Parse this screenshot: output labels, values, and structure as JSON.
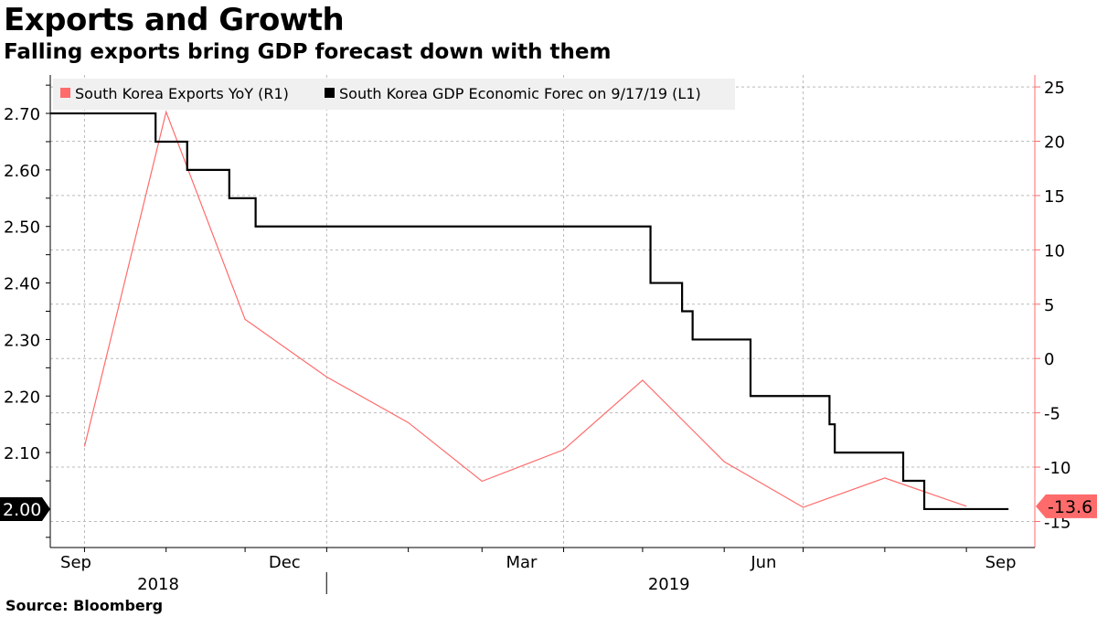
{
  "title": "Exports and Growth",
  "subtitle": "Falling exports bring GDP forecast down with them",
  "source": "Source: Bloomberg",
  "chart_data": {
    "type": "line",
    "legend_position": "top-left",
    "grid": true,
    "x_range": [
      "2018-09-17",
      "2019-09-26"
    ],
    "x_tick_labels": [
      {
        "label": "Sep",
        "date": "2018-09-15"
      },
      {
        "label": "Dec",
        "date": "2018-12-15"
      },
      {
        "label": "Mar",
        "date": "2019-03-15"
      },
      {
        "label": "Jun",
        "date": "2019-06-15"
      },
      {
        "label": "Sep",
        "date": "2019-09-13"
      }
    ],
    "year_labels": [
      {
        "label": "2018",
        "date": "2018-10-28"
      },
      {
        "label": "2019",
        "date": "2019-05-10"
      }
    ],
    "left_axis": {
      "ticks": [
        "2.70",
        "2.60",
        "2.50",
        "2.40",
        "2.30",
        "2.20",
        "2.10",
        "2.00"
      ],
      "range": [
        1.932,
        2.768
      ]
    },
    "right_axis": {
      "ticks": [
        "25",
        "20",
        "15",
        "10",
        "5",
        "0",
        "-5",
        "-10",
        "-15"
      ],
      "range": [
        -17.4,
        26.1
      ]
    },
    "series": [
      {
        "name": "South Korea Exports YoY  (R1)",
        "axis": "right",
        "color": "#ff6b6b",
        "last_value_label": "-13.6",
        "points": [
          [
            "2018-09-30",
            -8.1
          ],
          [
            "2018-10-31",
            22.7
          ],
          [
            "2018-11-30",
            3.6
          ],
          [
            "2018-12-31",
            -1.7
          ],
          [
            "2019-01-31",
            -5.9
          ],
          [
            "2019-02-28",
            -11.3
          ],
          [
            "2019-03-31",
            -8.4
          ],
          [
            "2019-04-30",
            -2.0
          ],
          [
            "2019-05-31",
            -9.5
          ],
          [
            "2019-06-30",
            -13.7
          ],
          [
            "2019-07-31",
            -11.0
          ],
          [
            "2019-08-31",
            -13.6
          ]
        ]
      },
      {
        "name": "South Korea GDP Economic Forec  on 9/17/19 (L1)",
        "axis": "left",
        "color": "#000000",
        "step": true,
        "last_value_label": "2.00",
        "points": [
          [
            "2018-09-17",
            2.7
          ],
          [
            "2018-10-27",
            2.65
          ],
          [
            "2018-11-08",
            2.6
          ],
          [
            "2018-11-24",
            2.55
          ],
          [
            "2018-12-04",
            2.5
          ],
          [
            "2019-05-03",
            2.4
          ],
          [
            "2019-05-15",
            2.35
          ],
          [
            "2019-05-19",
            2.3
          ],
          [
            "2019-06-10",
            2.2
          ],
          [
            "2019-07-10",
            2.15
          ],
          [
            "2019-07-12",
            2.1
          ],
          [
            "2019-08-07",
            2.05
          ],
          [
            "2019-08-15",
            2.0
          ],
          [
            "2019-09-16",
            2.0
          ]
        ]
      }
    ]
  }
}
